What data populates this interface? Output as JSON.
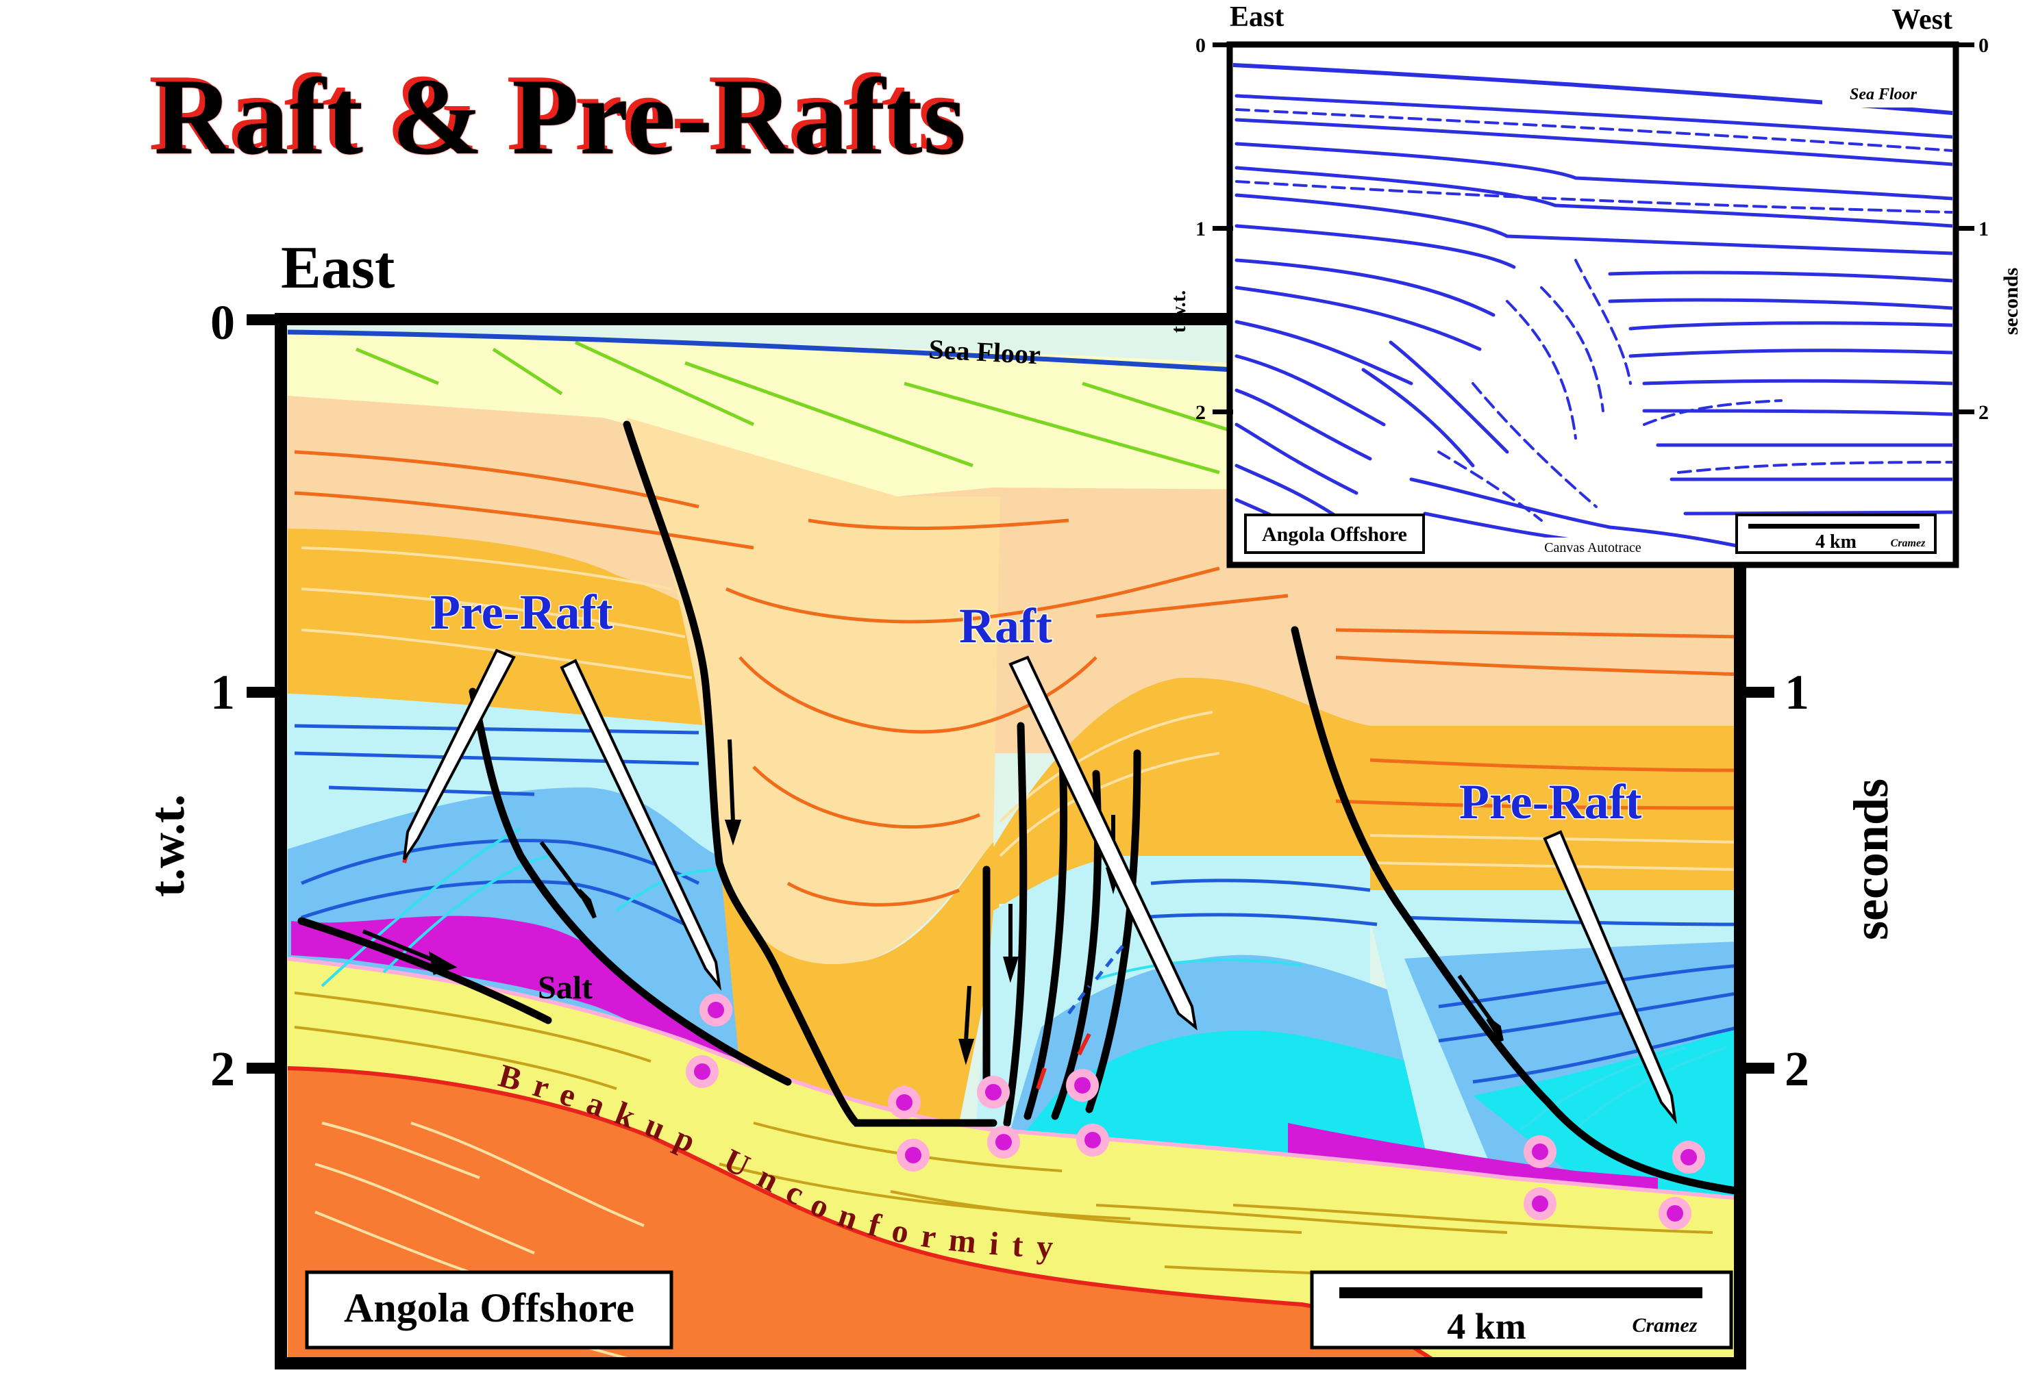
{
  "title": "Raft & Pre-Rafts",
  "section": {
    "direction_label": "East",
    "axis_ticks": [
      "0",
      "1",
      "2"
    ],
    "axis_left_label": "t.w.t.",
    "axis_right_label": "seconds",
    "labels": {
      "sea_floor": "Sea Floor",
      "pre_raft_left": "Pre-Raft",
      "raft": "Raft",
      "pre_raft_right": "Pre-Raft",
      "salt": "Salt",
      "breakup": "Breakup Unconformity"
    },
    "location_box": "Angola Offshore",
    "scale_label": "4 km",
    "author": "Cramez"
  },
  "inset": {
    "direction_left": "East",
    "direction_right": "West",
    "axis_ticks": [
      "0",
      "1",
      "2"
    ],
    "axis_left_label": "t.w.t.",
    "axis_right_label": "seconds",
    "sea_floor": "Sea Floor",
    "location_box": "Angola Offshore",
    "credit": "Canvas Autotrace",
    "scale_label": "4 km",
    "author": "Cramez"
  },
  "colors": {
    "title_shadow": "#e8231b",
    "label_blue": "#1a28d6",
    "sea": "#dff5ec",
    "salt": "#d41ad6",
    "seismic_blue": "#2b2fe0"
  }
}
